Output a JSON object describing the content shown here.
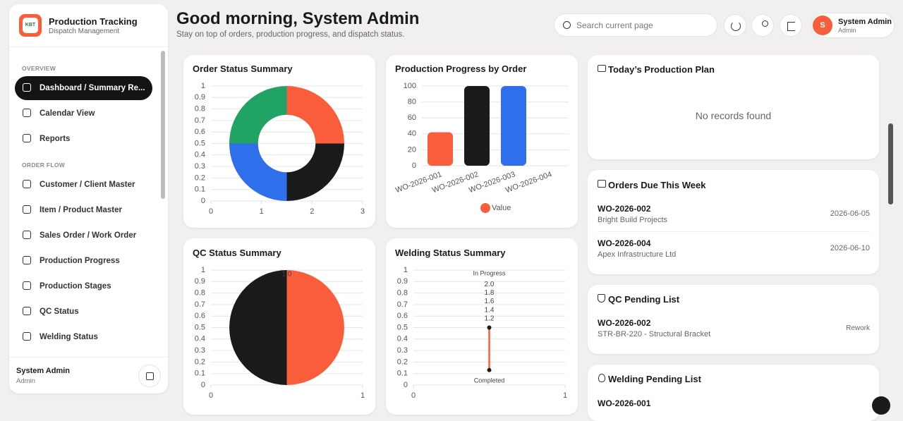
{
  "sidebar": {
    "logo": "KBT",
    "brand": "Production Tracking",
    "subtitle": "Dispatch Management",
    "sections": [
      {
        "heading": "OVERVIEW",
        "items": [
          "Dashboard / Summary Re...",
          "Calendar View",
          "Reports"
        ]
      },
      {
        "heading": "ORDER FLOW",
        "items": [
          "Customer / Client Master",
          "Item / Product Master",
          "Sales Order / Work Order",
          "Production Progress",
          "Production Stages",
          "QC Status",
          "Welding Status"
        ]
      }
    ],
    "user": {
      "name": "System Admin",
      "role": "Admin"
    }
  },
  "header": {
    "title": "Good morning, System Admin",
    "subtitle": "Stay on top of orders, production progress, and dispatch status.",
    "search": "Search current page",
    "user": {
      "initial": "S",
      "name": "System Admin",
      "role": "Admin"
    }
  },
  "panels": {
    "today_plan": {
      "title": "Today’s Production Plan",
      "empty": "No records found"
    },
    "orders_due": {
      "title": "Orders Due This Week",
      "items": [
        {
          "id": "WO-2026-002",
          "client": "Bright Build Projects",
          "date": "2026-06-05"
        },
        {
          "id": "WO-2026-004",
          "client": "Apex Infrastructure Ltd",
          "date": "2026-06-10"
        }
      ]
    },
    "qc_pending": {
      "title": "QC Pending List",
      "items": [
        {
          "id": "WO-2026-002",
          "item": "STR-BR-220 - Structural Bracket",
          "status": "Rework"
        }
      ]
    },
    "welding_pending": {
      "title": "Welding Pending List",
      "items": [
        {
          "id": "WO-2026-001"
        }
      ]
    }
  },
  "chart_data": [
    {
      "type": "doughnut",
      "title": "Order Status Summary",
      "values": [
        1,
        1,
        1,
        1
      ],
      "colors": [
        "#f95d3c",
        "#1a1a1a",
        "#2f6fec",
        "#21a366"
      ],
      "xlim": [
        0,
        3
      ],
      "xticks": [
        0,
        1,
        2,
        3
      ],
      "ylim": [
        0,
        1
      ],
      "yticks": [
        0,
        0.1,
        0.2,
        0.3,
        0.4,
        0.5,
        0.6,
        0.7,
        0.8,
        0.9,
        1
      ],
      "grid": true
    },
    {
      "type": "bar",
      "title": "Production Progress by Order",
      "categories": [
        "WO-2026-001",
        "WO-2026-002",
        "WO-2026-003",
        "WO-2026-004"
      ],
      "series": [
        {
          "name": "Value",
          "color": "#f95d3c",
          "values": [
            42,
            100,
            100,
            0
          ]
        }
      ],
      "bar_colors": [
        "#f95d3c",
        "#1a1a1a",
        "#2f6fec",
        "#21a366"
      ],
      "ylim": [
        0,
        100
      ],
      "yticks": [
        0,
        20,
        40,
        60,
        80,
        100
      ],
      "grid": true,
      "legend": "bottom"
    },
    {
      "type": "pie",
      "title": "QC Status Summary",
      "values": [
        1,
        1
      ],
      "colors": [
        "#f95d3c",
        "#1a1a1a"
      ],
      "annotation": "1.0",
      "xlim": [
        0,
        1
      ],
      "xticks": [
        0,
        1
      ],
      "ylim": [
        0,
        1
      ],
      "yticks": [
        0,
        0.1,
        0.2,
        0.3,
        0.4,
        0.5,
        0.6,
        0.7,
        0.8,
        0.9,
        1
      ],
      "grid": true
    },
    {
      "type": "line",
      "title": "Welding Status Summary",
      "x": [
        0.5,
        0.5
      ],
      "values": [
        0.5,
        0.13
      ],
      "color": "#f95d3c",
      "point_labels": [
        "In Progress",
        "Completed"
      ],
      "rticks": [
        {
          "value": 2,
          "label": "2.0"
        },
        1.8,
        1.6,
        1.4,
        1.2
      ],
      "xlim": [
        0,
        1
      ],
      "xticks": [
        0,
        1
      ],
      "ylim": [
        0,
        1
      ],
      "yticks": [
        0,
        0.1,
        0.2,
        0.3,
        0.4,
        0.5,
        0.6,
        0.7,
        0.8,
        0.9,
        1
      ],
      "grid": true
    }
  ]
}
